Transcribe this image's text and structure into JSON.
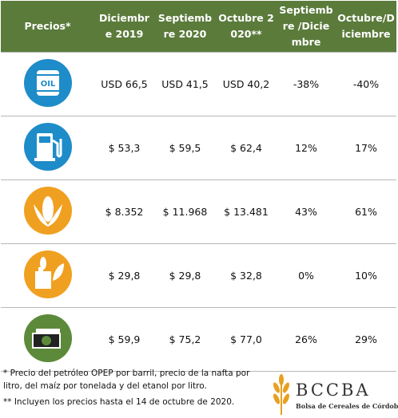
{
  "table": {
    "header": [
      "Precios*",
      "Diciembre 2019",
      "Septiembre 2020",
      "Octubre 2020**",
      "Septiembre /Diciembre",
      "Octubre/Diciembre"
    ],
    "icon_label": "OIL",
    "rows": [
      [
        "USD 66,5",
        "USD 41,5",
        "USD 40,2",
        "-38%",
        "-40%"
      ],
      [
        "$ 53,3",
        "$ 59,5",
        "$ 62,4",
        "12%",
        "17%"
      ],
      [
        "$ 8.352",
        "$ 11.968",
        "$ 13.481",
        "43%",
        "61%"
      ],
      [
        "$ 29,8",
        "$ 29,8",
        "$ 32,8",
        "0%",
        "10%"
      ],
      [
        "$ 59,9",
        "$ 75,2",
        "$ 77,0",
        "26%",
        "29%"
      ]
    ]
  },
  "footnotes": [
    "* Precio del petróleo OPEP por barril, precio de la nafta por litro, del maíz por tonelada y del etanol por litro.",
    "** Incluyen los precios hasta el 14 de octubre de 2020."
  ],
  "logo": {
    "name": "BCCBA",
    "subtitle": "Bolsa de Cereales de Córdoba"
  }
}
